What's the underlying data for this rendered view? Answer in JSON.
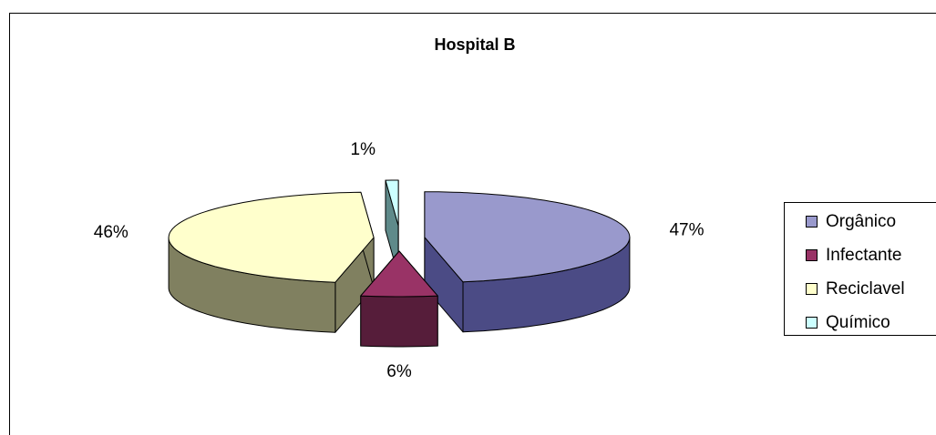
{
  "chart_data": {
    "type": "pie3d",
    "title": "Hospital B",
    "categories": [
      "Orgânico",
      "Infectante",
      "Reciclavel",
      "Químico"
    ],
    "values": [
      47,
      6,
      46,
      1
    ],
    "value_labels": [
      "47%",
      "6%",
      "46%",
      "1%"
    ],
    "colors": [
      "#9999CC",
      "#993366",
      "#FFFFCC",
      "#CCFFFF"
    ],
    "side_colors": [
      "#4B4B85",
      "#561D3A",
      "#808060",
      "#5F8A8A"
    ],
    "legend": "right"
  }
}
